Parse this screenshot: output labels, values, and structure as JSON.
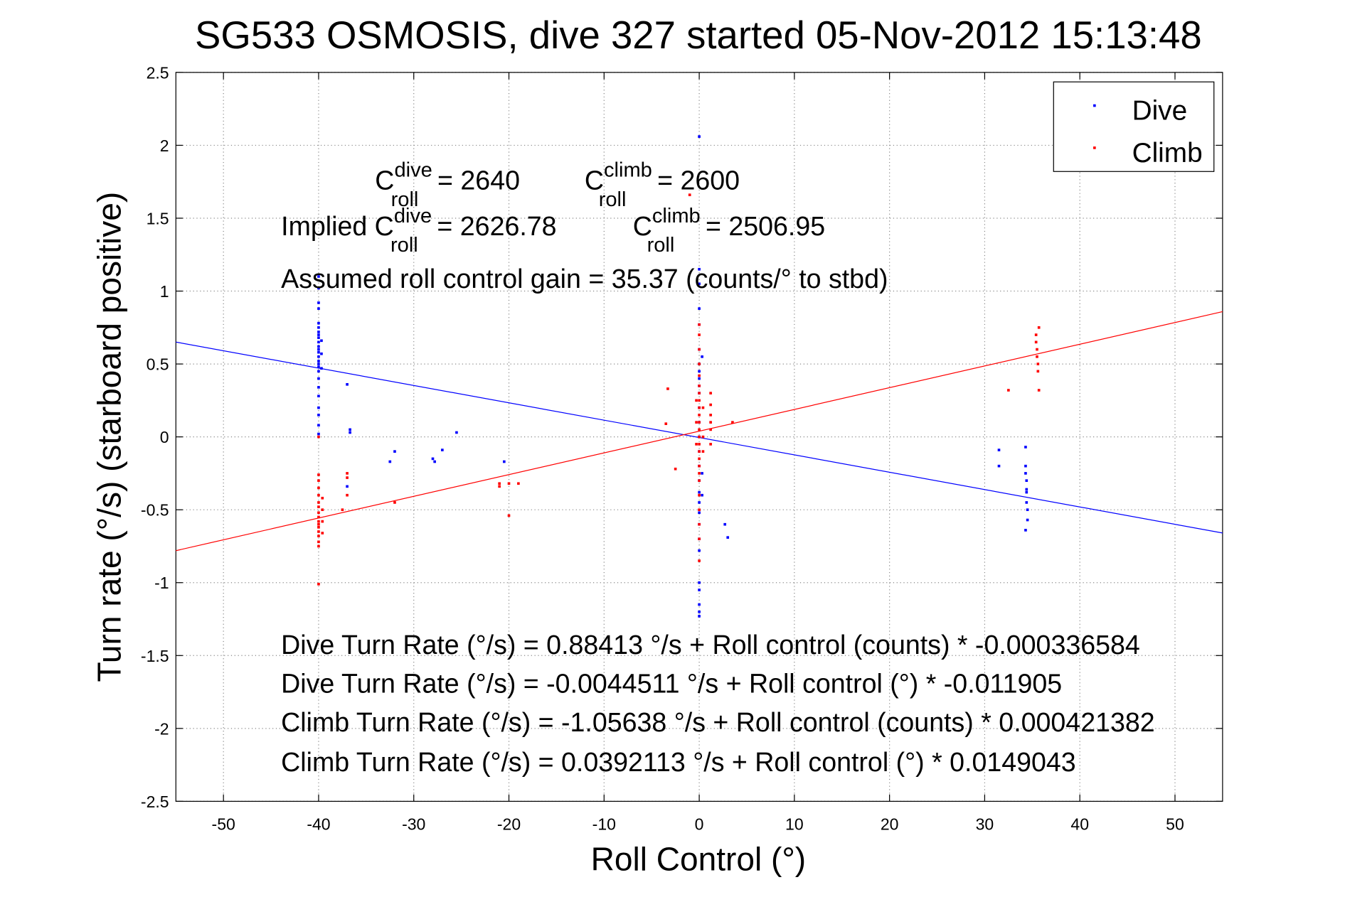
{
  "chart_data": {
    "type": "scatter",
    "title": "SG533 OSMOSIS, dive 327 started 05-Nov-2012 15:13:48",
    "xlabel": "Roll Control (°)",
    "ylabel": "Turn rate (°/s)  (starboard positive)",
    "xlim": [
      -55,
      55
    ],
    "ylim": [
      -2.5,
      2.5
    ],
    "xticks": [
      -50,
      -40,
      -30,
      -20,
      -10,
      0,
      10,
      20,
      30,
      40,
      50
    ],
    "yticks": [
      -2.5,
      -2,
      -1.5,
      -1,
      -0.5,
      0,
      0.5,
      1,
      1.5,
      2,
      2.5
    ],
    "grid": true,
    "legend": {
      "placement": "top-right",
      "entries": [
        "Dive",
        "Climb"
      ]
    },
    "colors": {
      "Dive": "#0000ff",
      "Climb": "#ff0000"
    },
    "series": [
      {
        "name": "Dive",
        "points": [
          [
            -40,
            0.02
          ],
          [
            -40,
            0.08
          ],
          [
            -40,
            0.15
          ],
          [
            -40,
            0.2
          ],
          [
            -40,
            0.28
          ],
          [
            -40,
            0.34
          ],
          [
            -40,
            0.4
          ],
          [
            -40,
            0.45
          ],
          [
            -40,
            0.48
          ],
          [
            -40,
            0.5
          ],
          [
            -40,
            0.52
          ],
          [
            -40,
            0.55
          ],
          [
            -40,
            0.58
          ],
          [
            -40,
            0.6
          ],
          [
            -40,
            0.62
          ],
          [
            -40,
            0.65
          ],
          [
            -40,
            0.68
          ],
          [
            -40,
            0.7
          ],
          [
            -40,
            0.72
          ],
          [
            -40,
            0.75
          ],
          [
            -40,
            0.78
          ],
          [
            -40,
            0.88
          ],
          [
            -40,
            0.92
          ],
          [
            -40,
            1.02
          ],
          [
            -40,
            1.1
          ],
          [
            -39.7,
            0.47
          ],
          [
            -39.7,
            0.57
          ],
          [
            -39.7,
            0.66
          ],
          [
            -37,
            0.36
          ],
          [
            -36.7,
            0.05
          ],
          [
            -36.7,
            0.03
          ],
          [
            -37,
            -0.34
          ],
          [
            -32.5,
            -0.17
          ],
          [
            -32,
            -0.1
          ],
          [
            -28,
            -0.15
          ],
          [
            -27.8,
            -0.17
          ],
          [
            -27,
            -0.09
          ],
          [
            -25.5,
            0.03
          ],
          [
            -20.5,
            -0.17
          ],
          [
            0,
            2.06
          ],
          [
            0,
            1.15
          ],
          [
            0,
            1.05
          ],
          [
            0,
            0.88
          ],
          [
            0,
            0.77
          ],
          [
            0,
            0.6
          ],
          [
            0,
            0.5
          ],
          [
            0,
            0.45
          ],
          [
            0,
            0.4
          ],
          [
            0,
            0.35
          ],
          [
            0,
            0.3
          ],
          [
            0,
            0.2
          ],
          [
            0,
            0.1
          ],
          [
            0,
            0
          ],
          [
            0,
            -0.1
          ],
          [
            0,
            -0.2
          ],
          [
            0,
            -0.3
          ],
          [
            0,
            -0.38
          ],
          [
            0,
            -0.45
          ],
          [
            0,
            -0.52
          ],
          [
            0,
            -0.6
          ],
          [
            0,
            -0.7
          ],
          [
            0,
            -0.78
          ],
          [
            0,
            -1.0
          ],
          [
            0,
            -1.05
          ],
          [
            0,
            -1.15
          ],
          [
            0,
            -1.2
          ],
          [
            0,
            -1.23
          ],
          [
            0.3,
            0.55
          ],
          [
            0.3,
            -0.25
          ],
          [
            0.3,
            -0.4
          ],
          [
            2.7,
            -0.6
          ],
          [
            3,
            -0.69
          ],
          [
            31.5,
            -0.09
          ],
          [
            31.5,
            -0.2
          ],
          [
            34.3,
            -0.07
          ],
          [
            34.3,
            -0.2
          ],
          [
            34.3,
            -0.25
          ],
          [
            34.4,
            -0.3
          ],
          [
            34.4,
            -0.36
          ],
          [
            34.4,
            -0.38
          ],
          [
            34.4,
            -0.45
          ],
          [
            34.5,
            -0.5
          ],
          [
            34.5,
            -0.57
          ],
          [
            34.3,
            -0.64
          ]
        ]
      },
      {
        "name": "Climb",
        "points": [
          [
            -40,
            0.0
          ],
          [
            -40,
            -0.26
          ],
          [
            -40,
            -0.3
          ],
          [
            -40,
            -0.35
          ],
          [
            -40,
            -0.4
          ],
          [
            -40,
            -0.45
          ],
          [
            -40,
            -0.48
          ],
          [
            -40,
            -0.52
          ],
          [
            -40,
            -0.55
          ],
          [
            -40,
            -0.58
          ],
          [
            -40,
            -0.6
          ],
          [
            -40,
            -0.62
          ],
          [
            -40,
            -0.65
          ],
          [
            -40,
            -0.68
          ],
          [
            -40,
            -0.72
          ],
          [
            -40,
            -0.75
          ],
          [
            -40,
            -1.01
          ],
          [
            -39.6,
            -0.42
          ],
          [
            -39.6,
            -0.5
          ],
          [
            -39.6,
            -0.58
          ],
          [
            -39.6,
            -0.66
          ],
          [
            -37,
            -0.25
          ],
          [
            -37,
            -0.28
          ],
          [
            -37,
            -0.4
          ],
          [
            -37.5,
            -0.5
          ],
          [
            -32,
            -0.45
          ],
          [
            -21,
            -0.32
          ],
          [
            -21,
            -0.34
          ],
          [
            -20,
            -0.54
          ],
          [
            -20,
            -0.32
          ],
          [
            -19,
            -0.32
          ],
          [
            -3.3,
            0.33
          ],
          [
            -3.5,
            0.09
          ],
          [
            -2.5,
            -0.22
          ],
          [
            -1,
            1.66
          ],
          [
            0,
            0.77
          ],
          [
            0,
            0.7
          ],
          [
            0,
            0.6
          ],
          [
            0,
            0.5
          ],
          [
            0,
            0.42
          ],
          [
            0,
            0.35
          ],
          [
            0,
            0.3
          ],
          [
            0,
            0.25
          ],
          [
            0,
            0.2
          ],
          [
            0,
            0.15
          ],
          [
            0,
            0.1
          ],
          [
            0,
            0.05
          ],
          [
            0,
            0
          ],
          [
            0,
            -0.05
          ],
          [
            0,
            -0.1
          ],
          [
            0,
            -0.15
          ],
          [
            0,
            -0.2
          ],
          [
            0,
            -0.25
          ],
          [
            0,
            -0.3
          ],
          [
            0,
            -0.4
          ],
          [
            0,
            -0.5
          ],
          [
            0,
            -0.6
          ],
          [
            0,
            -0.7
          ],
          [
            0,
            -0.85
          ],
          [
            -0.3,
            0.25
          ],
          [
            -0.3,
            0.1
          ],
          [
            -0.3,
            -0.05
          ],
          [
            0.4,
            0.2
          ],
          [
            0.4,
            0.0
          ],
          [
            0.4,
            -0.1
          ],
          [
            1.2,
            0.3
          ],
          [
            1.2,
            0.22
          ],
          [
            1.2,
            0.15
          ],
          [
            1.2,
            0.1
          ],
          [
            1.2,
            0.05
          ],
          [
            1.2,
            -0.05
          ],
          [
            3.5,
            0.1
          ],
          [
            32.5,
            0.32
          ],
          [
            35.4,
            0.7
          ],
          [
            35.4,
            0.65
          ],
          [
            35.5,
            0.6
          ],
          [
            35.5,
            0.55
          ],
          [
            35.6,
            0.5
          ],
          [
            35.6,
            0.45
          ],
          [
            35.7,
            0.75
          ],
          [
            35.7,
            0.32
          ]
        ]
      }
    ],
    "fits": [
      {
        "name": "Dive",
        "intercept": -0.0044511,
        "slope": -0.011905
      },
      {
        "name": "Climb",
        "intercept": 0.0392113,
        "slope": 0.0149043
      }
    ],
    "annotations": {
      "c_dive": {
        "base": "C",
        "sup": "dive",
        "sub": "roll",
        "value": "= 2640"
      },
      "c_climb": {
        "base": "C",
        "sup": "climb",
        "sub": "roll",
        "value": "= 2600"
      },
      "implied_prefix": "Implied C",
      "implied_dive": {
        "sup": "dive",
        "sub": "roll",
        "value": "= 2626.78"
      },
      "implied_climb": {
        "base": "C",
        "sup": "climb",
        "sub": "roll",
        "value": "= 2506.95"
      },
      "gain": "Assumed roll control gain = 35.37 (counts/° to stbd)",
      "eq1": "Dive Turn Rate (°/s) = 0.88413 °/s + Roll control (counts) * -0.000336584",
      "eq2": "Dive Turn Rate (°/s) = -0.0044511 °/s + Roll control (°) * -0.011905",
      "eq3": "Climb Turn Rate (°/s) = -1.05638 °/s + Roll control (counts) * 0.000421382",
      "eq4": "Climb Turn Rate (°/s) = 0.0392113 °/s + Roll control (°) * 0.0149043"
    }
  }
}
